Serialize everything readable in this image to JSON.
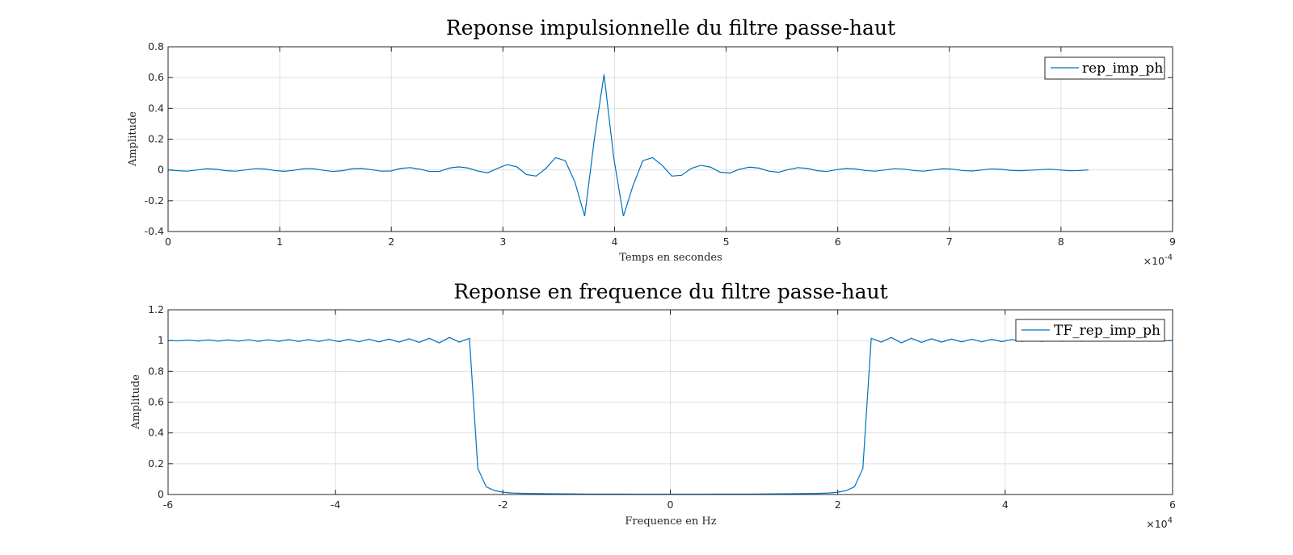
{
  "chart_data": [
    {
      "type": "line",
      "title": "Reponse impulsionnelle du filtre passe-haut",
      "xlabel": "Temps en secondes",
      "ylabel": "Amplitude",
      "xlim": [
        0,
        9
      ],
      "ylim": [
        -0.4,
        0.8
      ],
      "xticks": [
        0,
        1,
        2,
        3,
        4,
        5,
        6,
        7,
        8,
        9
      ],
      "yticks": [
        -0.4,
        -0.2,
        0,
        0.2,
        0.4,
        0.6,
        0.8
      ],
      "x_exponent_prefix": "×10",
      "x_exponent": "-4",
      "x_unit_scale": 0.0001,
      "grid": true,
      "legend_position": "top-right",
      "color": "#0072bd",
      "series": [
        {
          "name": "rep_imp_ph",
          "x_start": 0,
          "x_step": 0.0868,
          "values": [
            0.0,
            -0.005,
            -0.008,
            0.0,
            0.008,
            0.004,
            -0.005,
            -0.008,
            0.0,
            0.009,
            0.006,
            -0.004,
            -0.009,
            -0.002,
            0.008,
            0.008,
            -0.002,
            -0.01,
            -0.005,
            0.008,
            0.01,
            0.002,
            -0.008,
            -0.007,
            0.01,
            0.015,
            0.005,
            -0.01,
            -0.01,
            0.012,
            0.02,
            0.012,
            -0.008,
            -0.018,
            0.01,
            0.035,
            0.02,
            -0.03,
            -0.04,
            0.01,
            0.08,
            0.06,
            -0.08,
            -0.3,
            0.2,
            0.62,
            0.08,
            -0.3,
            -0.1,
            0.06,
            0.08,
            0.03,
            -0.04,
            -0.035,
            0.01,
            0.03,
            0.018,
            -0.015,
            -0.02,
            0.005,
            0.018,
            0.012,
            -0.008,
            -0.015,
            0.002,
            0.015,
            0.01,
            -0.005,
            -0.01,
            0.002,
            0.01,
            0.006,
            -0.004,
            -0.008,
            0.0,
            0.009,
            0.005,
            -0.004,
            -0.008,
            0.0,
            0.008,
            0.005,
            -0.004,
            -0.007,
            0.0,
            0.007,
            0.004,
            -0.003,
            -0.005,
            -0.002,
            0.002,
            0.005,
            0.0,
            -0.005,
            -0.004,
            0.0
          ]
        }
      ]
    },
    {
      "type": "line",
      "title": "Reponse en frequence du filtre passe-haut",
      "xlabel": "Frequence en Hz",
      "ylabel": "Amplitude",
      "xlim": [
        -6,
        6
      ],
      "ylim": [
        0,
        1.2
      ],
      "xticks": [
        -6,
        -4,
        -2,
        0,
        2,
        4,
        6
      ],
      "yticks": [
        0,
        0.2,
        0.4,
        0.6,
        0.8,
        1,
        1.2
      ],
      "x_exponent_prefix": "×10",
      "x_exponent": "4",
      "x_unit_scale": 10000,
      "grid": true,
      "legend_position": "top-right",
      "color": "#0072bd",
      "series": [
        {
          "name": "TF_rep_imp_ph",
          "x": [
            -6.0,
            -5.88,
            -5.76,
            -5.64,
            -5.52,
            -5.4,
            -5.28,
            -5.16,
            -5.04,
            -4.92,
            -4.8,
            -4.68,
            -4.56,
            -4.44,
            -4.32,
            -4.2,
            -4.08,
            -3.96,
            -3.84,
            -3.72,
            -3.6,
            -3.48,
            -3.36,
            -3.24,
            -3.12,
            -3.0,
            -2.88,
            -2.76,
            -2.64,
            -2.52,
            -2.4,
            -2.3,
            -2.2,
            -2.1,
            -2.0,
            -1.9,
            -1.8,
            -1.6,
            -1.4,
            -1.2,
            -1.0,
            -0.8,
            -0.6,
            -0.4,
            -0.2,
            0.0,
            0.2,
            0.4,
            0.6,
            0.8,
            1.0,
            1.2,
            1.4,
            1.6,
            1.8,
            1.9,
            2.0,
            2.1,
            2.2,
            2.3,
            2.4,
            2.52,
            2.64,
            2.76,
            2.88,
            3.0,
            3.12,
            3.24,
            3.36,
            3.48,
            3.6,
            3.72,
            3.84,
            3.96,
            4.08,
            4.2,
            4.32,
            4.44,
            4.56,
            4.68,
            4.8,
            4.92,
            5.04,
            5.16,
            5.28,
            5.4,
            5.52,
            5.64,
            5.76,
            5.88,
            6.0
          ],
          "values": [
            1.0,
            0.998,
            1.003,
            0.997,
            1.004,
            0.996,
            1.004,
            0.996,
            1.005,
            0.995,
            1.005,
            0.995,
            1.006,
            0.994,
            1.006,
            0.994,
            1.007,
            0.993,
            1.008,
            0.992,
            1.009,
            0.991,
            1.01,
            0.99,
            1.012,
            0.988,
            1.015,
            0.985,
            1.02,
            0.99,
            1.015,
            0.17,
            0.05,
            0.025,
            0.015,
            0.01,
            0.008,
            0.006,
            0.005,
            0.004,
            0.003,
            0.003,
            0.003,
            0.002,
            0.002,
            0.002,
            0.002,
            0.002,
            0.003,
            0.003,
            0.003,
            0.004,
            0.005,
            0.006,
            0.008,
            0.01,
            0.015,
            0.025,
            0.05,
            0.17,
            1.015,
            0.99,
            1.02,
            0.985,
            1.015,
            0.988,
            1.012,
            0.99,
            1.01,
            0.991,
            1.009,
            0.992,
            1.008,
            0.993,
            1.007,
            0.994,
            1.006,
            0.994,
            1.006,
            0.995,
            1.005,
            0.995,
            1.005,
            0.996,
            1.004,
            0.996,
            1.004,
            0.997,
            1.003,
            0.998,
            1.0
          ]
        }
      ]
    }
  ]
}
